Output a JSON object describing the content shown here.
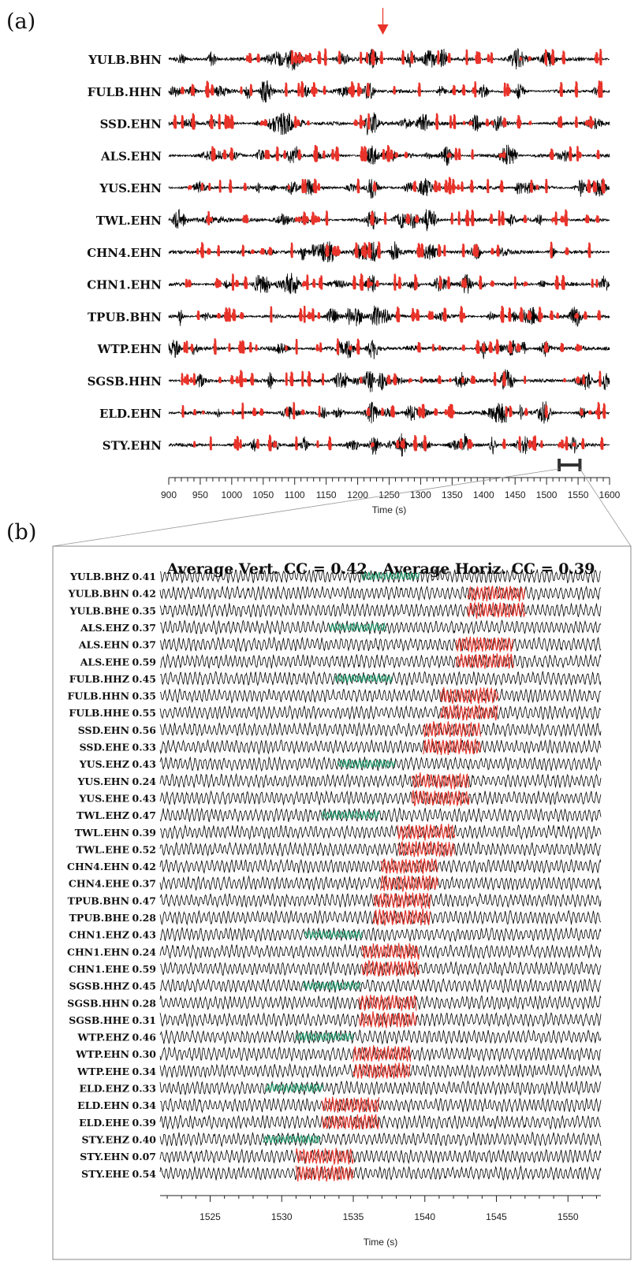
{
  "panels": {
    "a": {
      "tag": "(a)"
    },
    "b": {
      "tag": "(b)",
      "title": "Average Vert. CC = 0.42 , Average Horiz. CC = 0.39"
    }
  },
  "colors": {
    "trace": "#000000",
    "highlight": "#e8332a",
    "p_window": "#1a9a6a",
    "s_window": "#e8332a",
    "axis": "#222222",
    "marker": "#333333"
  },
  "chart_data": [
    {
      "type": "line",
      "xlabel": "Time (s)",
      "xlim": [
        900,
        1600
      ],
      "xticks": [
        900,
        950,
        1000,
        1050,
        1100,
        1150,
        1200,
        1250,
        1300,
        1350,
        1400,
        1450,
        1500,
        1550,
        1600
      ],
      "arrow_time": 1240,
      "zoom_window": [
        1520,
        1553
      ],
      "series": [
        {
          "name": "YULB.BHN"
        },
        {
          "name": "FULB.HHN"
        },
        {
          "name": "SSD.EHN"
        },
        {
          "name": "ALS.EHN"
        },
        {
          "name": "YUS.EHN"
        },
        {
          "name": "TWL.EHN"
        },
        {
          "name": "CHN4.EHN"
        },
        {
          "name": "CHN1.EHN"
        },
        {
          "name": "TPUB.BHN"
        },
        {
          "name": "WTP.EHN"
        },
        {
          "name": "SGSB.HHN"
        },
        {
          "name": "ELD.EHN"
        },
        {
          "name": "STY.EHN"
        }
      ]
    },
    {
      "type": "line",
      "xlabel": "Time (s)",
      "xlim": [
        1521.5,
        1552.3
      ],
      "xticks": [
        1525,
        1530,
        1535,
        1540,
        1545,
        1550
      ],
      "series": [
        {
          "name": "YULB.BHZ",
          "cc": "0.41",
          "window": "P",
          "start": 1535.6,
          "end": 1539.6
        },
        {
          "name": "YULB.BHN",
          "cc": "0.42",
          "window": "S",
          "start": 1543.0,
          "end": 1547.0
        },
        {
          "name": "YULB.BHE",
          "cc": "0.35",
          "window": "S",
          "start": 1543.0,
          "end": 1547.0
        },
        {
          "name": "ALS.EHZ",
          "cc": "0.37",
          "window": "P",
          "start": 1533.3,
          "end": 1537.3
        },
        {
          "name": "ALS.EHN",
          "cc": "0.37",
          "window": "S",
          "start": 1542.2,
          "end": 1546.2
        },
        {
          "name": "ALS.EHE",
          "cc": "0.59",
          "window": "S",
          "start": 1542.2,
          "end": 1546.2
        },
        {
          "name": "FULB.HHZ",
          "cc": "0.45",
          "window": "P",
          "start": 1533.7,
          "end": 1537.7
        },
        {
          "name": "FULB.HHN",
          "cc": "0.35",
          "window": "S",
          "start": 1541.1,
          "end": 1545.1
        },
        {
          "name": "FULB.HHE",
          "cc": "0.55",
          "window": "S",
          "start": 1541.1,
          "end": 1545.1
        },
        {
          "name": "SSD.EHN",
          "cc": "0.56",
          "window": "S",
          "start": 1539.9,
          "end": 1543.9
        },
        {
          "name": "SSD.EHE",
          "cc": "0.33",
          "window": "S",
          "start": 1539.9,
          "end": 1543.9
        },
        {
          "name": "YUS.EHZ",
          "cc": "0.43",
          "window": "P",
          "start": 1533.9,
          "end": 1537.9
        },
        {
          "name": "YUS.EHN",
          "cc": "0.24",
          "window": "S",
          "start": 1539.1,
          "end": 1543.1
        },
        {
          "name": "YUS.EHE",
          "cc": "0.43",
          "window": "S",
          "start": 1539.1,
          "end": 1543.1
        },
        {
          "name": "TWL.EHZ",
          "cc": "0.47",
          "window": "P",
          "start": 1532.8,
          "end": 1536.8
        },
        {
          "name": "TWL.EHN",
          "cc": "0.39",
          "window": "S",
          "start": 1538.1,
          "end": 1542.1
        },
        {
          "name": "TWL.EHE",
          "cc": "0.52",
          "window": "S",
          "start": 1538.1,
          "end": 1542.1
        },
        {
          "name": "CHN4.EHN",
          "cc": "0.42",
          "window": "S",
          "start": 1536.9,
          "end": 1540.9
        },
        {
          "name": "CHN4.EHE",
          "cc": "0.37",
          "window": "S",
          "start": 1536.9,
          "end": 1540.9
        },
        {
          "name": "TPUB.BHN",
          "cc": "0.47",
          "window": "S",
          "start": 1536.4,
          "end": 1540.4
        },
        {
          "name": "TPUB.BHE",
          "cc": "0.28",
          "window": "S",
          "start": 1536.4,
          "end": 1540.4
        },
        {
          "name": "CHN1.EHZ",
          "cc": "0.43",
          "window": "P",
          "start": 1531.6,
          "end": 1535.6
        },
        {
          "name": "CHN1.EHN",
          "cc": "0.24",
          "window": "S",
          "start": 1535.6,
          "end": 1539.6
        },
        {
          "name": "CHN1.EHE",
          "cc": "0.59",
          "window": "S",
          "start": 1535.6,
          "end": 1539.6
        },
        {
          "name": "SGSB.HHZ",
          "cc": "0.45",
          "window": "P",
          "start": 1531.5,
          "end": 1535.5
        },
        {
          "name": "SGSB.HHN",
          "cc": "0.28",
          "window": "S",
          "start": 1535.4,
          "end": 1539.4
        },
        {
          "name": "SGSB.HHE",
          "cc": "0.31",
          "window": "S",
          "start": 1535.4,
          "end": 1539.4
        },
        {
          "name": "WTP.EHZ",
          "cc": "0.46",
          "window": "P",
          "start": 1531.0,
          "end": 1535.0
        },
        {
          "name": "WTP.EHN",
          "cc": "0.30",
          "window": "S",
          "start": 1535.0,
          "end": 1539.0
        },
        {
          "name": "WTP.EHE",
          "cc": "0.34",
          "window": "S",
          "start": 1535.0,
          "end": 1539.0
        },
        {
          "name": "ELD.EHZ",
          "cc": "0.33",
          "window": "P",
          "start": 1528.9,
          "end": 1532.9
        },
        {
          "name": "ELD.EHN",
          "cc": "0.34",
          "window": "S",
          "start": 1532.8,
          "end": 1536.8
        },
        {
          "name": "ELD.EHE",
          "cc": "0.39",
          "window": "S",
          "start": 1532.8,
          "end": 1536.8
        },
        {
          "name": "STY.EHZ",
          "cc": "0.40",
          "window": "P",
          "start": 1528.7,
          "end": 1532.7
        },
        {
          "name": "STY.EHN",
          "cc": "0.07",
          "window": "S",
          "start": 1531.0,
          "end": 1535.0
        },
        {
          "name": "STY.EHE",
          "cc": "0.54",
          "window": "S",
          "start": 1531.0,
          "end": 1535.0
        }
      ]
    }
  ]
}
